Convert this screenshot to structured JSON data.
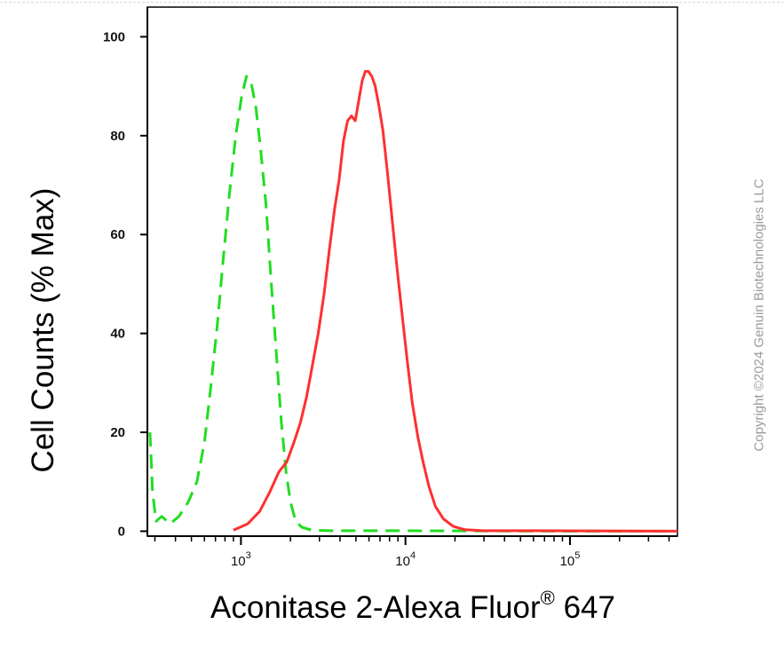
{
  "chart_data": {
    "type": "line",
    "ylabel": "Cell Counts (% Max)",
    "xlabel": {
      "text": "Aconitase 2-Alexa Fluor",
      "superscript": "®",
      "suffix": "647"
    },
    "xscale": "log",
    "xlim": [
      270,
      450000
    ],
    "ylim": [
      -1,
      106
    ],
    "yticks": [
      "0",
      "20",
      "40",
      "60",
      "80",
      "100"
    ],
    "xticks": [
      {
        "base": "10",
        "exp": "3",
        "value": 1000
      },
      {
        "base": "10",
        "exp": "4",
        "value": 10000
      },
      {
        "base": "10",
        "exp": "5",
        "value": 100000
      }
    ],
    "series": [
      {
        "color": "#22dd22",
        "style": "dashed",
        "points": [
          [
            280,
            20
          ],
          [
            290,
            8
          ],
          [
            305,
            2
          ],
          [
            330,
            3
          ],
          [
            370,
            1.5
          ],
          [
            420,
            3
          ],
          [
            480,
            6
          ],
          [
            540,
            10
          ],
          [
            600,
            18
          ],
          [
            660,
            30
          ],
          [
            720,
            42
          ],
          [
            780,
            55
          ],
          [
            850,
            68
          ],
          [
            930,
            80
          ],
          [
            1010,
            88
          ],
          [
            1080,
            92
          ],
          [
            1150,
            91
          ],
          [
            1230,
            86
          ],
          [
            1320,
            77
          ],
          [
            1420,
            66
          ],
          [
            1530,
            50
          ],
          [
            1640,
            36
          ],
          [
            1760,
            22
          ],
          [
            1880,
            12
          ],
          [
            2000,
            6
          ],
          [
            2150,
            2
          ],
          [
            2350,
            0.8
          ],
          [
            2700,
            0.2
          ],
          [
            3500,
            0.1
          ],
          [
            10000,
            0.1
          ],
          [
            100000,
            0
          ],
          [
            400000,
            0
          ]
        ]
      },
      {
        "color": "#ff3030",
        "style": "solid",
        "points": [
          [
            900,
            0.2
          ],
          [
            1100,
            1.5
          ],
          [
            1300,
            4
          ],
          [
            1500,
            8
          ],
          [
            1700,
            12
          ],
          [
            1900,
            14
          ],
          [
            2100,
            18
          ],
          [
            2300,
            22
          ],
          [
            2500,
            27
          ],
          [
            2700,
            33
          ],
          [
            2950,
            40
          ],
          [
            3200,
            48
          ],
          [
            3450,
            57
          ],
          [
            3700,
            65
          ],
          [
            3950,
            71
          ],
          [
            4200,
            79
          ],
          [
            4450,
            83
          ],
          [
            4700,
            84
          ],
          [
            4950,
            83
          ],
          [
            5200,
            87
          ],
          [
            5450,
            91
          ],
          [
            5700,
            93
          ],
          [
            5950,
            93
          ],
          [
            6250,
            92
          ],
          [
            6550,
            90
          ],
          [
            6900,
            86
          ],
          [
            7300,
            81
          ],
          [
            7800,
            72
          ],
          [
            8300,
            63
          ],
          [
            8900,
            53
          ],
          [
            9600,
            43
          ],
          [
            10300,
            34
          ],
          [
            11000,
            26
          ],
          [
            11900,
            19
          ],
          [
            12800,
            14
          ],
          [
            13900,
            9
          ],
          [
            15200,
            5
          ],
          [
            17000,
            2.5
          ],
          [
            19500,
            1
          ],
          [
            23000,
            0.3
          ],
          [
            30000,
            0.1
          ],
          [
            60000,
            0.1
          ],
          [
            450000,
            0
          ]
        ]
      }
    ]
  },
  "copyright": "Copyright ©2024 Genuin Biotechnologies LLC"
}
